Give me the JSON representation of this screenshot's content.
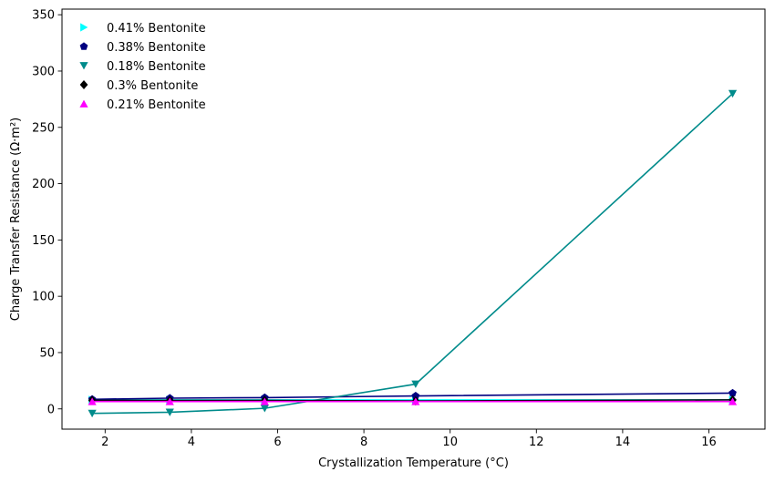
{
  "chart_data": {
    "type": "line",
    "title": "",
    "xlabel": "Crystallization Temperature (°C)",
    "ylabel": "Charge Transfer Resistance (Ω·m²)",
    "xlim": [
      1.0,
      17.3
    ],
    "ylim": [
      -18,
      355
    ],
    "xticks": [
      2,
      4,
      6,
      8,
      10,
      12,
      14,
      16
    ],
    "yticks": [
      0,
      50,
      100,
      150,
      200,
      250,
      300,
      350
    ],
    "x": [
      1.7,
      3.5,
      5.7,
      9.2,
      16.55
    ],
    "grid": false,
    "legend_position": "top-left",
    "series": [
      {
        "name": "0.41% Bentonite",
        "color": "#00ffff",
        "marker": "triangle-right",
        "values": [
          8.0,
          8.0,
          8.0,
          8.0,
          8.0
        ]
      },
      {
        "name": "0.38% Bentonite",
        "color": "#000080",
        "marker": "pentagon",
        "values": [
          8.5,
          9.5,
          10.0,
          11.5,
          14.0
        ]
      },
      {
        "name": "0.18% Bentonite",
        "color": "#008b8b",
        "marker": "triangle-down",
        "values": [
          -4.0,
          -3.0,
          0.5,
          22.0,
          280.0
        ]
      },
      {
        "name": "0.3% Bentonite",
        "color": "#000000",
        "marker": "diamond",
        "values": [
          7.5,
          7.5,
          7.5,
          7.0,
          8.0
        ]
      },
      {
        "name": "0.21% Bentonite",
        "color": "#ff00ff",
        "marker": "triangle-up",
        "values": [
          6.5,
          6.5,
          6.5,
          6.5,
          6.5
        ]
      }
    ]
  }
}
